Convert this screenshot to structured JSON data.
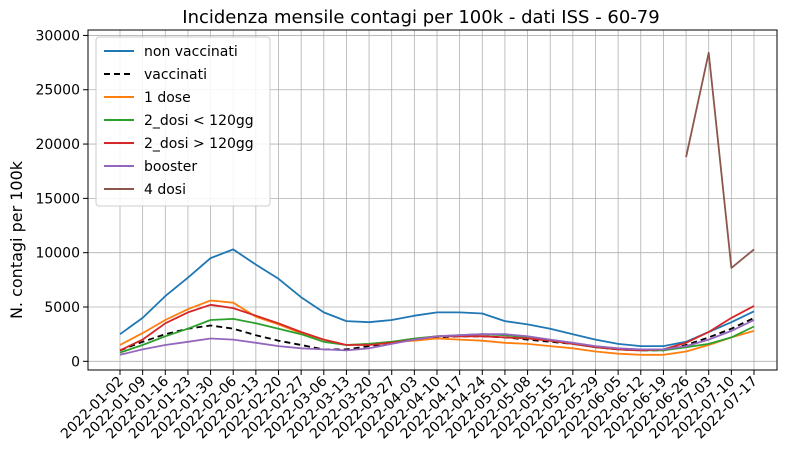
{
  "chart_data": {
    "type": "line",
    "title": "Incidenza mensile contagi per 100k - dati ISS - 60-79",
    "xlabel": "",
    "ylabel": "N. contagi per 100k",
    "ylim": [
      -800,
      30500
    ],
    "yticks": [
      0,
      5000,
      10000,
      15000,
      20000,
      25000,
      30000
    ],
    "grid": true,
    "legend_position": "top-left",
    "categories": [
      "2022-01-02",
      "2022-01-09",
      "2022-01-16",
      "2022-01-23",
      "2022-01-30",
      "2022-02-06",
      "2022-02-13",
      "2022-02-20",
      "2022-02-27",
      "2022-03-06",
      "2022-03-13",
      "2022-03-20",
      "2022-03-27",
      "2022-04-03",
      "2022-04-10",
      "2022-04-17",
      "2022-04-24",
      "2022-05-01",
      "2022-05-08",
      "2022-05-15",
      "2022-05-22",
      "2022-05-29",
      "2022-06-05",
      "2022-06-12",
      "2022-06-19",
      "2022-06-26",
      "2022-07-03",
      "2022-07-10",
      "2022-07-17"
    ],
    "series": [
      {
        "name": "non vaccinati",
        "color": "#1f77b4",
        "dash": false,
        "values": [
          2500,
          4000,
          6000,
          7700,
          9500,
          10300,
          8900,
          7600,
          5900,
          4500,
          3700,
          3600,
          3800,
          4200,
          4500,
          4500,
          4400,
          3700,
          3400,
          3000,
          2500,
          2000,
          1600,
          1400,
          1400,
          1800,
          2700,
          3600,
          4600
        ]
      },
      {
        "name": "vaccinati",
        "color": "#000000",
        "dash": true,
        "values": [
          1000,
          1800,
          2500,
          3000,
          3300,
          3000,
          2400,
          1900,
          1500,
          1100,
          1100,
          1400,
          1700,
          2000,
          2200,
          2300,
          2300,
          2200,
          2000,
          1800,
          1600,
          1300,
          1100,
          1000,
          1000,
          1500,
          2200,
          3000,
          4000
        ]
      },
      {
        "name": "1 dose",
        "color": "#ff7f0e",
        "dash": false,
        "values": [
          1500,
          2600,
          3800,
          4800,
          5600,
          5400,
          4100,
          3400,
          2600,
          2000,
          1500,
          1600,
          1800,
          1900,
          2100,
          2000,
          1900,
          1700,
          1600,
          1400,
          1200,
          900,
          700,
          600,
          600,
          900,
          1500,
          2200,
          2800
        ]
      },
      {
        "name": "2_dosi < 120gg",
        "color": "#2ca02c",
        "dash": false,
        "values": [
          800,
          1500,
          2300,
          3000,
          3800,
          3900,
          3500,
          3000,
          2500,
          1800,
          1500,
          1600,
          1800,
          2100,
          2300,
          2400,
          2500,
          2400,
          2200,
          1900,
          1600,
          1300,
          1100,
          1000,
          1000,
          1300,
          1600,
          2200,
          3200
        ]
      },
      {
        "name": "2_dosi > 120gg",
        "color": "#d62728",
        "dash": false,
        "values": [
          1000,
          2000,
          3500,
          4500,
          5200,
          4900,
          4200,
          3500,
          2700,
          2000,
          1500,
          1500,
          1700,
          2000,
          2300,
          2300,
          2300,
          2200,
          2100,
          1900,
          1600,
          1300,
          1100,
          1000,
          1100,
          1700,
          2700,
          4000,
          5100
        ]
      },
      {
        "name": "booster",
        "color": "#9467bd",
        "dash": false,
        "values": [
          600,
          1100,
          1500,
          1800,
          2100,
          2000,
          1700,
          1400,
          1200,
          1100,
          1000,
          1200,
          1600,
          2000,
          2300,
          2400,
          2500,
          2500,
          2300,
          2000,
          1700,
          1400,
          1200,
          1100,
          1100,
          1400,
          2000,
          2800,
          3800
        ]
      },
      {
        "name": "4 dosi",
        "color": "#8c564b",
        "dash": false,
        "values": [
          null,
          null,
          null,
          null,
          null,
          null,
          null,
          null,
          null,
          null,
          null,
          null,
          null,
          null,
          null,
          null,
          null,
          null,
          null,
          null,
          null,
          null,
          null,
          null,
          null,
          18800,
          28400,
          8600,
          10300
        ]
      }
    ]
  }
}
